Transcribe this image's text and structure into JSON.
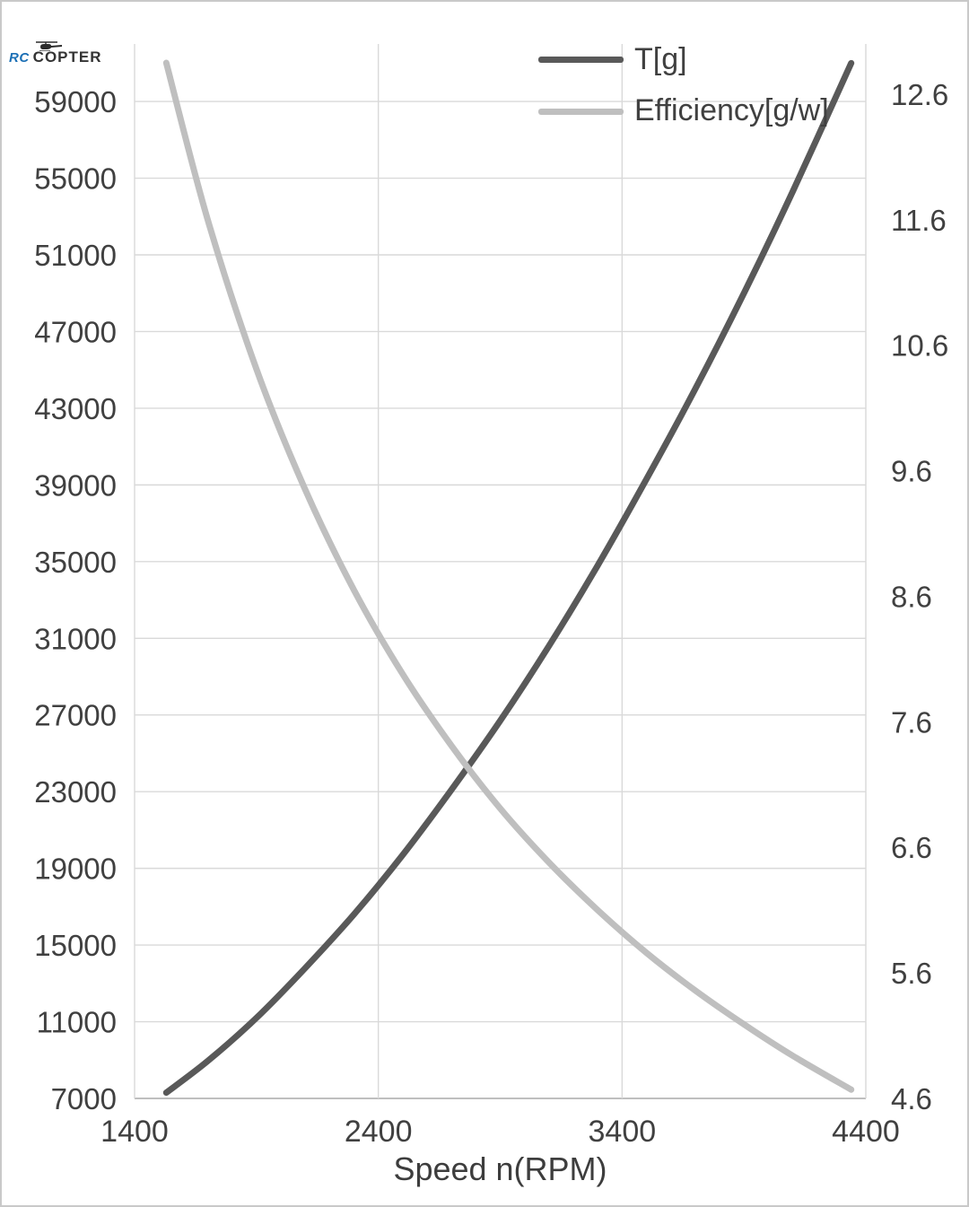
{
  "logo": {
    "rc": "RC",
    "copter": "COPTER"
  },
  "legend": {
    "items": [
      {
        "label": "T[g]",
        "color": "#595959"
      },
      {
        "label": "Efficiency[g/w]",
        "color": "#bfbfbf"
      }
    ]
  },
  "chart_data": {
    "type": "line",
    "title": "",
    "xlabel": "Speed n(RPM)",
    "x_ticks": [
      1400,
      2400,
      3400,
      4400
    ],
    "x_range": [
      1400,
      4400
    ],
    "left_axis": {
      "ticks": [
        7000,
        11000,
        15000,
        19000,
        23000,
        27000,
        31000,
        35000,
        39000,
        43000,
        47000,
        51000,
        55000,
        59000
      ],
      "range": [
        7000,
        62000
      ],
      "decimals": 0
    },
    "right_axis": {
      "ticks": [
        4.6,
        5.6,
        6.6,
        7.6,
        8.6,
        9.6,
        10.6,
        11.6,
        12.6
      ],
      "range": [
        4.6,
        13.0
      ],
      "decimals": 1
    },
    "grid": {
      "color": "#d9d9d9",
      "axis_line_color": "#bfbfbf",
      "vertical_lines": [
        2400,
        3400
      ],
      "horizontal": "left-ticks"
    },
    "text_color": "#404040",
    "series": [
      {
        "name": "T[g]",
        "axis": "left",
        "color": "#595959",
        "width": 7,
        "x": [
          1530,
          1700,
          1900,
          2100,
          2300,
          2500,
          2700,
          2900,
          3100,
          3300,
          3500,
          3700,
          3900,
          4100,
          4340
        ],
        "values": [
          7300,
          8950,
          11200,
          13800,
          16600,
          19700,
          23100,
          26700,
          30600,
          34800,
          39300,
          44000,
          49000,
          54300,
          61000
        ]
      },
      {
        "name": "Efficiency[g/w]",
        "axis": "right",
        "color": "#bfbfbf",
        "width": 7,
        "x": [
          1530,
          1700,
          1900,
          2100,
          2300,
          2500,
          2700,
          2900,
          3100,
          3300,
          3500,
          3700,
          3900,
          4100,
          4340
        ],
        "values": [
          12.85,
          11.6,
          10.41,
          9.45,
          8.65,
          7.98,
          7.41,
          6.91,
          6.48,
          6.1,
          5.76,
          5.46,
          5.19,
          4.94,
          4.67
        ]
      }
    ]
  }
}
